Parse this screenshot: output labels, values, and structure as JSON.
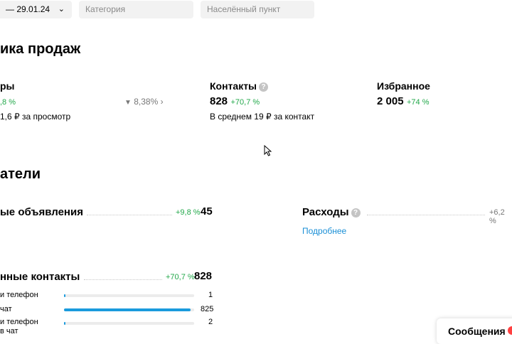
{
  "filters": {
    "date_value": "— 29.01.24",
    "category_placeholder": "Категория",
    "location_placeholder": "Населённый пункт"
  },
  "sales": {
    "heading": "ика продаж",
    "views": {
      "title": "ры",
      "change": ",8 %",
      "sub": "1,6 ₽ за просмотр",
      "conversion": "8,38%"
    },
    "contacts": {
      "title": "Контакты",
      "value": "828",
      "change": "+70,7 %",
      "sub": "В среднем 19 ₽ за контакт"
    },
    "favorites": {
      "title": "Избранное",
      "value": "2 005",
      "change": "+74 %"
    }
  },
  "metrics": {
    "heading": "атели",
    "ads": {
      "title": "ые объявления",
      "change": "+9,8 %",
      "value": "45"
    },
    "expenses": {
      "title": "Расходы",
      "change": "+6,2 %",
      "link": "Подробнее"
    },
    "contacts": {
      "title": "нные контакты",
      "change": "+70,7 %",
      "value": "828",
      "rows": [
        {
          "label": "и телефон",
          "value": "1",
          "fraction": 0.012
        },
        {
          "label": "чат",
          "value": "825",
          "fraction": 0.97
        },
        {
          "label": "и телефон\nв чат",
          "value": "2",
          "fraction": 0.012
        }
      ]
    }
  },
  "messages": {
    "label": "Сообщения"
  },
  "colors": {
    "accent_green": "#22a84a",
    "bar_blue": "#1a9bdd",
    "link_blue": "#1a8fd6"
  }
}
